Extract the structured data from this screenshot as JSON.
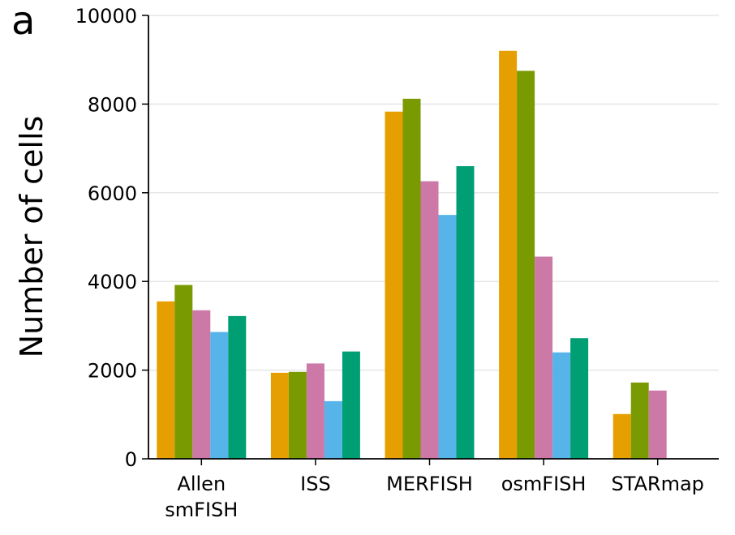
{
  "panel_label": "a",
  "chart_data": {
    "type": "bar",
    "title": "",
    "xlabel": "",
    "ylabel": "Number of cells",
    "ylim": [
      0,
      10000
    ],
    "yticks": [
      "0",
      "2000",
      "4000",
      "6000",
      "8000",
      "10000"
    ],
    "grid": "horizontal",
    "categories": [
      "Allen smFISH",
      "ISS",
      "MERFISH",
      "osmFISH",
      "STARmap"
    ],
    "category_label_lines": [
      [
        "Allen",
        "smFISH"
      ],
      [
        "ISS"
      ],
      [
        "MERFISH"
      ],
      [
        "osmFISH"
      ],
      [
        "STARmap"
      ]
    ],
    "series": [
      {
        "color": "#E69F00",
        "values": [
          3550,
          1940,
          7830,
          9200,
          1010
        ]
      },
      {
        "color": "#7A9A01",
        "values": [
          3920,
          1960,
          8120,
          8750,
          1720
        ]
      },
      {
        "color": "#CC79A7",
        "values": [
          3350,
          2150,
          6260,
          4560,
          1540
        ]
      },
      {
        "color": "#56B4E9",
        "values": [
          2860,
          1300,
          5500,
          2400,
          null
        ]
      },
      {
        "color": "#009E73",
        "values": [
          3220,
          2420,
          6600,
          2720,
          null
        ]
      }
    ]
  }
}
